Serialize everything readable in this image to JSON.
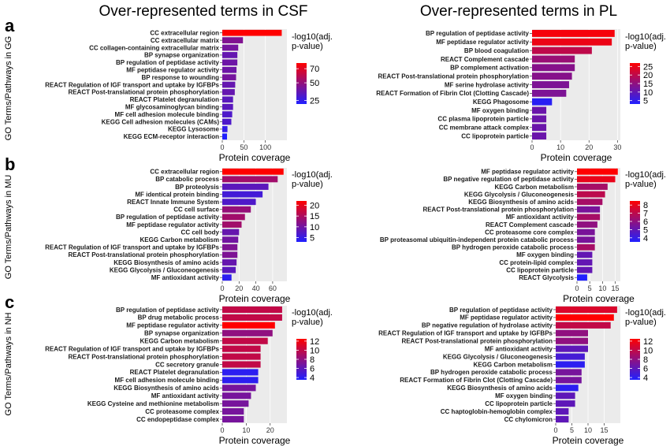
{
  "column_titles": [
    "Over-represented terms in CSF",
    "Over-represented terms in PL"
  ],
  "row_letters": [
    "a",
    "b",
    "c"
  ],
  "row_labels": [
    "GO Terms/Pathways in GG",
    "GO Terms/Pathways in MU",
    "GO Terms/Pathways in NH"
  ],
  "colors": {
    "high": "#ff0000",
    "low": "#2020ff",
    "panel_bg": "#ebebeb"
  },
  "chart_data": [
    {
      "type": "bar",
      "id": "a-csf",
      "orientation": "horizontal",
      "xlabel": "Protein coverage",
      "xlim": [
        0,
        150
      ],
      "xticks": [
        0,
        50,
        100
      ],
      "legend_title": "-log10(adj.\np-value)",
      "legend_range": [
        20,
        78
      ],
      "legend_ticks": [
        25,
        50,
        70
      ],
      "categories": [
        "CC extracellular region",
        "CC extracellular matrix",
        "CC collagen-containing extracellular matrix",
        "BP synapse organization",
        "BP regulation of peptidase activity",
        "MF peptidase regulator activity",
        "BP response to wounding",
        "REACT Regulation of IGF transport and uptake by IGFBPs",
        "REACT Post-translational protein phosphorylation",
        "REACT Platelet degranulation",
        "MF glycosaminoglycan binding",
        "MF cell adhesion molecule binding",
        "KEGG Cell adhesion molecules (CAMs)",
        "KEGG Lysosome",
        "KEGG ECM-receptor interaction"
      ],
      "values": [
        138,
        48,
        37,
        35,
        35,
        33,
        32,
        30,
        29,
        25,
        25,
        23,
        21,
        12,
        11
      ],
      "color_values": [
        78,
        45,
        42,
        38,
        40,
        40,
        42,
        38,
        38,
        35,
        35,
        32,
        32,
        25,
        20
      ]
    },
    {
      "type": "bar",
      "id": "a-pl",
      "orientation": "horizontal",
      "xlabel": "Protein coverage",
      "xlim": [
        0,
        31
      ],
      "xticks": [
        0,
        10,
        20,
        30
      ],
      "legend_title": "-log10(adj.\np-value)",
      "legend_range": [
        3,
        27
      ],
      "legend_ticks": [
        5,
        10,
        15,
        20,
        25
      ],
      "categories": [
        "BP regulation of peptidase activity",
        "MF peptidase regulator activity",
        "BP blood coagulation",
        "REACT Complement cascade",
        "BP complement activation",
        "REACT Post-translational protein phosphorylation",
        "MF serine hydrolase activity",
        "REACT Formation of Fibrin Clot (Clotting Cascade)",
        "KEGG Phagosome",
        "MF oxygen binding",
        "CC plasma lipoprotein particle",
        "CC membrane attack complex",
        "CC lipoprotein particle"
      ],
      "values": [
        29,
        28,
        21,
        15,
        15,
        14,
        13,
        12,
        7,
        5,
        5,
        5,
        5
      ],
      "color_values": [
        26,
        25,
        20,
        16,
        14,
        14,
        13,
        13,
        4,
        11,
        11,
        11,
        11
      ]
    },
    {
      "type": "bar",
      "id": "b-csf",
      "orientation": "horizontal",
      "xlabel": "Protein coverage",
      "xlim": [
        0,
        77
      ],
      "xticks": [
        0,
        20,
        40,
        60
      ],
      "legend_title": "-log10(adj.\np-value)",
      "legend_range": [
        3,
        22
      ],
      "legend_ticks": [
        5,
        10,
        15,
        20
      ],
      "categories": [
        "CC extracellular region",
        "BP catabolic process",
        "BP proteolysis",
        "MF identical protein binding",
        "REACT Innate Immune System",
        "CC cell surface",
        "BP regulation of peptidase activity",
        "MF peptidase regulator activity",
        "CC cell body",
        "KEGG Carbon metabolism",
        "REACT Regulation of IGF transport and uptake by IGFBPs",
        "REACT Post-translational protein phosphorylation",
        "KEGG Biosynthesis of amino acids",
        "KEGG Glycolysis / Gluconeogenesis",
        "MF antioxidant activity"
      ],
      "values": [
        73,
        66,
        55,
        48,
        40,
        34,
        27,
        23,
        20,
        19,
        18,
        18,
        17,
        16,
        11
      ],
      "color_values": [
        22,
        14,
        8,
        6,
        7,
        13,
        14,
        14,
        9,
        10,
        11,
        11,
        9,
        8,
        4
      ]
    },
    {
      "type": "bar",
      "id": "b-pl",
      "orientation": "horizontal",
      "xlabel": "Protein coverage",
      "xlim": [
        0,
        17
      ],
      "xticks": [
        0,
        5,
        10,
        15
      ],
      "legend_title": "-log10(adj.\np-value)",
      "legend_range": [
        3.5,
        8.5
      ],
      "legend_ticks": [
        4,
        5,
        6,
        7,
        8
      ],
      "categories": [
        "MF peptidase regulator activity",
        "BP negative regulation of peptidase activity",
        "KEGG Carbon metabolism",
        "KEGG Glycolysis / Gluconeogenesis",
        "KEGG Biosynthesis of amino acids",
        "REACT Post-translational protein phosphorylation",
        "MF antioxidant activity",
        "REACT Complement cascade",
        "CC proteasome core complex",
        "BP proteasomal ubiquitin-independent protein catabolic process",
        "BP hydrogen peroxide catabolic process",
        "MF oxygen binding",
        "CC protein-lipid complex",
        "CC lipoprotein particle",
        "REACT Glycolysis"
      ],
      "values": [
        16,
        15,
        12,
        11,
        10,
        9,
        9,
        8,
        7,
        7,
        7,
        6,
        6,
        6,
        4
      ],
      "color_values": [
        8.5,
        8,
        6.5,
        7,
        6.5,
        5.5,
        6.5,
        6,
        5.5,
        5.5,
        6.5,
        5,
        5,
        5,
        3.5
      ]
    },
    {
      "type": "bar",
      "id": "c-csf",
      "orientation": "horizontal",
      "xlabel": "Protein coverage",
      "xlim": [
        0,
        27
      ],
      "xticks": [
        0,
        10,
        20
      ],
      "legend_title": "-log10(adj.\np-value)",
      "legend_range": [
        3.5,
        12.5
      ],
      "legend_ticks": [
        4,
        6,
        8,
        10,
        12
      ],
      "categories": [
        "BP regulation of peptidase activity",
        "BP drug metabolic process",
        "MF peptidase regulator activity",
        "BP synapse organization",
        "KEGG Carbon metabolism",
        "REACT Regulation of IGF transport and uptake by IGFBPs",
        "REACT Post-translational protein phosphorylation",
        "CC secretory granule",
        "REACT Platelet degranulation",
        "MF cell adhesion molecule binding",
        "KEGG Biosynthesis of amino acids",
        "MF antioxidant activity",
        "KEGG Cysteine and methionine metabolism",
        "CC proteasome complex",
        "CC endopeptidase complex"
      ],
      "values": [
        25,
        25,
        22,
        21,
        19,
        16,
        16,
        16,
        15,
        15,
        14,
        12,
        11,
        9,
        9
      ],
      "color_values": [
        10,
        10,
        12.5,
        8,
        10,
        10,
        10,
        10,
        4,
        4,
        7,
        7,
        7,
        7,
        7
      ]
    },
    {
      "type": "bar",
      "id": "c-pl",
      "orientation": "horizontal",
      "xlabel": "Protein coverage",
      "xlim": [
        0,
        20
      ],
      "xticks": [
        0,
        5,
        10,
        15
      ],
      "legend_title": "-log10(adj.\np-value)",
      "legend_range": [
        3.5,
        12.5
      ],
      "legend_ticks": [
        4,
        6,
        8,
        10,
        12
      ],
      "categories": [
        "BP regulation of peptidase activity",
        "MF peptidase regulator activity",
        "BP negative regulation of hydrolase activity",
        "REACT Regulation of IGF transport and uptake by IGFBPs",
        "REACT Post-translational protein phosphorylation",
        "MF antioxidant activity",
        "KEGG Glycolysis / Gluconeogenesis",
        "KEGG Carbon metabolism",
        "BP hydrogen peroxide catabolic process",
        "REACT Formation of Fibrin Clot (Clotting Cascade)",
        "KEGG Biosynthesis of amino acids",
        "MF oxygen binding",
        "CC lipoprotein particle",
        "CC haptoglobin-hemoglobin complex",
        "CC chylomicron"
      ],
      "values": [
        19,
        18,
        17,
        10,
        10,
        10,
        9,
        9,
        8,
        8,
        7,
        6,
        6,
        4,
        4
      ],
      "color_values": [
        11,
        12.5,
        10,
        8,
        8,
        6,
        5,
        4,
        7,
        7,
        4,
        6,
        6,
        6,
        6
      ]
    }
  ]
}
